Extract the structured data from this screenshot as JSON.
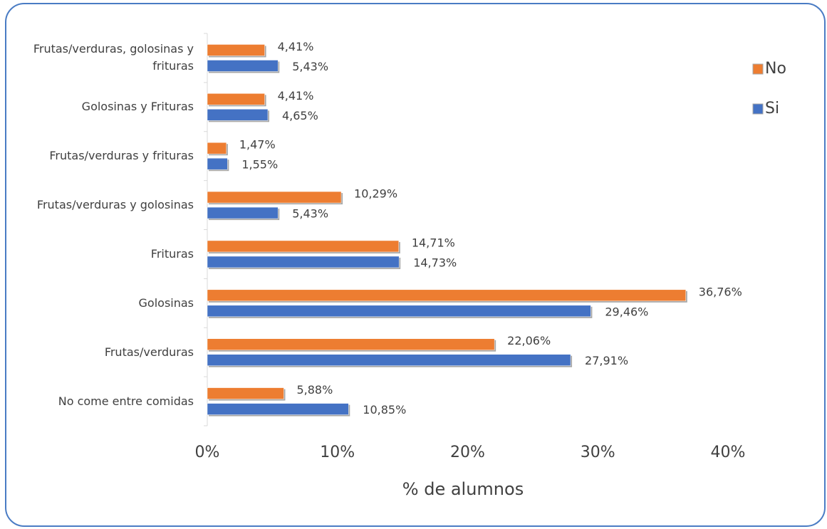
{
  "chart_data": {
    "type": "bar",
    "orientation": "horizontal",
    "x_label": "% de alumnos",
    "categories": [
      "Frutas/verduras, golosinas y frituras",
      "Golosinas y Frituras",
      "Frutas/verduras y frituras",
      "Frutas/verduras y golosinas",
      "Frituras",
      "Golosinas",
      "Frutas/verduras",
      "No come entre comidas"
    ],
    "series": [
      {
        "name": "No",
        "color": "#ed7d31",
        "values": [
          4.41,
          4.41,
          1.47,
          10.29,
          14.71,
          36.76,
          22.06,
          5.88
        ],
        "value_labels": [
          "4,41%",
          "4,41%",
          "1,47%",
          "10,29%",
          "14,71%",
          "36,76%",
          "22,06%",
          "5,88%"
        ]
      },
      {
        "name": "Si",
        "color": "#4472c4",
        "values": [
          5.43,
          4.65,
          1.55,
          5.43,
          14.73,
          29.46,
          27.91,
          10.85
        ],
        "value_labels": [
          "5,43%",
          "4,65%",
          "1,55%",
          "5,43%",
          "14,73%",
          "29,46%",
          "27,91%",
          "10,85%"
        ]
      }
    ],
    "xlim": [
      0,
      40
    ],
    "xticks": [
      {
        "value": 0,
        "label": "0%"
      },
      {
        "value": 10,
        "label": "10%"
      },
      {
        "value": 20,
        "label": "20%"
      },
      {
        "value": 30,
        "label": "30%"
      },
      {
        "value": 40,
        "label": "40%"
      }
    ],
    "legend": "right",
    "grid": false
  }
}
